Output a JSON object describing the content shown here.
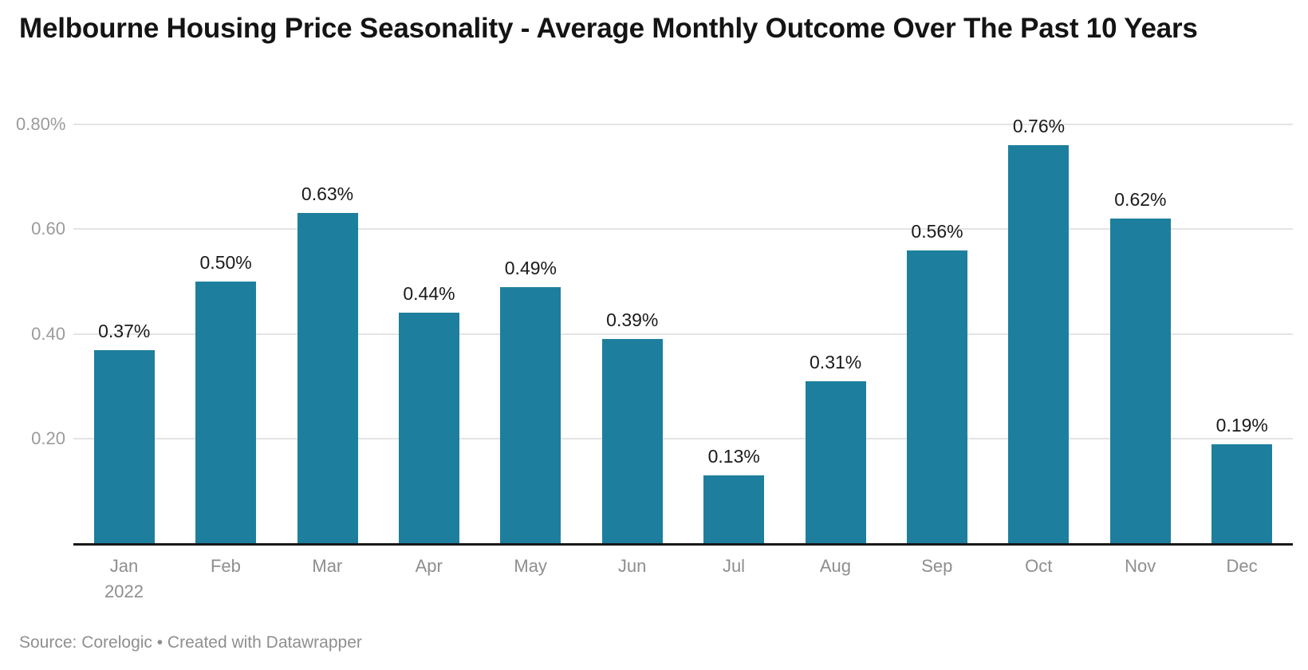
{
  "header": {
    "title": "Melbourne Housing Price Seasonality - Average Monthly Outcome Over The Past 10 Years"
  },
  "footer": {
    "source_text": "Source: Corelogic • Created with Datawrapper"
  },
  "chart_data": {
    "type": "bar",
    "title": "Melbourne Housing Price Seasonality - Average Monthly Outcome Over The Past 10 Years",
    "xlabel": "",
    "ylabel": "",
    "unit": "%",
    "categories": [
      "Jan",
      "Feb",
      "Mar",
      "Apr",
      "May",
      "Jun",
      "Jul",
      "Aug",
      "Sep",
      "Oct",
      "Nov",
      "Dec"
    ],
    "first_category_sub_label": "2022",
    "values": [
      0.37,
      0.5,
      0.63,
      0.44,
      0.49,
      0.39,
      0.13,
      0.31,
      0.56,
      0.76,
      0.62,
      0.19
    ],
    "data_labels": [
      "0.37%",
      "0.50%",
      "0.63%",
      "0.44%",
      "0.49%",
      "0.39%",
      "0.13%",
      "0.31%",
      "0.56%",
      "0.76%",
      "0.62%",
      "0.19%"
    ],
    "y_ticks": [
      {
        "value": 0.2,
        "label": "0.20"
      },
      {
        "value": 0.4,
        "label": "0.40"
      },
      {
        "value": 0.6,
        "label": "0.60"
      },
      {
        "value": 0.8,
        "label": "0.80%"
      }
    ],
    "ylim": [
      0,
      0.84
    ],
    "grid": "horizontal",
    "legend": "none",
    "colors": {
      "bar": "#1d7f9d",
      "gridline": "#e4e4e4",
      "axis_baseline": "#18181a",
      "ytick_label": "#9b9b9b",
      "month_label": "#8e8e8e",
      "value_label": "#1a1a1a",
      "title": "#141414",
      "footer": "#8f8f8f"
    }
  }
}
